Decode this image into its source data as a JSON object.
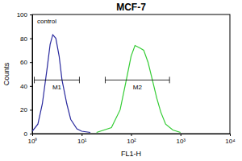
{
  "chart_data": {
    "type": "line",
    "title": "MCF-7",
    "x_label": "FL1-H",
    "y_label": "Counts",
    "log": "x",
    "xlim": [
      1,
      10000
    ],
    "xticks": [
      {
        "value": 1,
        "label": "10⁰"
      },
      {
        "value": 10,
        "label": "10¹"
      },
      {
        "value": 100,
        "label": "10²"
      },
      {
        "value": 1000,
        "label": "10³"
      },
      {
        "value": 10000,
        "label": "10⁴"
      }
    ],
    "ylim": [
      0,
      100
    ],
    "yticks": [
      0,
      20,
      40,
      60,
      80,
      100
    ],
    "series": [
      {
        "name": "control",
        "color": "#2a2a9e",
        "x": [
          1,
          1.3,
          1.6,
          2,
          2.3,
          2.6,
          3,
          3.5,
          4,
          5,
          6,
          8,
          10,
          15
        ],
        "values": [
          2,
          8,
          25,
          55,
          75,
          83,
          80,
          65,
          45,
          25,
          12,
          4,
          2,
          1
        ]
      },
      {
        "color": "#33cc33",
        "x": [
          20,
          40,
          60,
          80,
          100,
          120,
          150,
          180,
          220,
          270,
          330,
          400,
          500,
          700,
          1000
        ],
        "values": [
          1,
          5,
          20,
          45,
          65,
          74,
          72,
          70,
          60,
          45,
          30,
          18,
          8,
          3,
          1
        ]
      }
    ],
    "annotations": [
      {
        "text": "M1",
        "x_range": [
          1.1,
          9
        ],
        "y": 45
      },
      {
        "text": "M2",
        "x_range": [
          30,
          600
        ],
        "y": 45
      }
    ]
  }
}
